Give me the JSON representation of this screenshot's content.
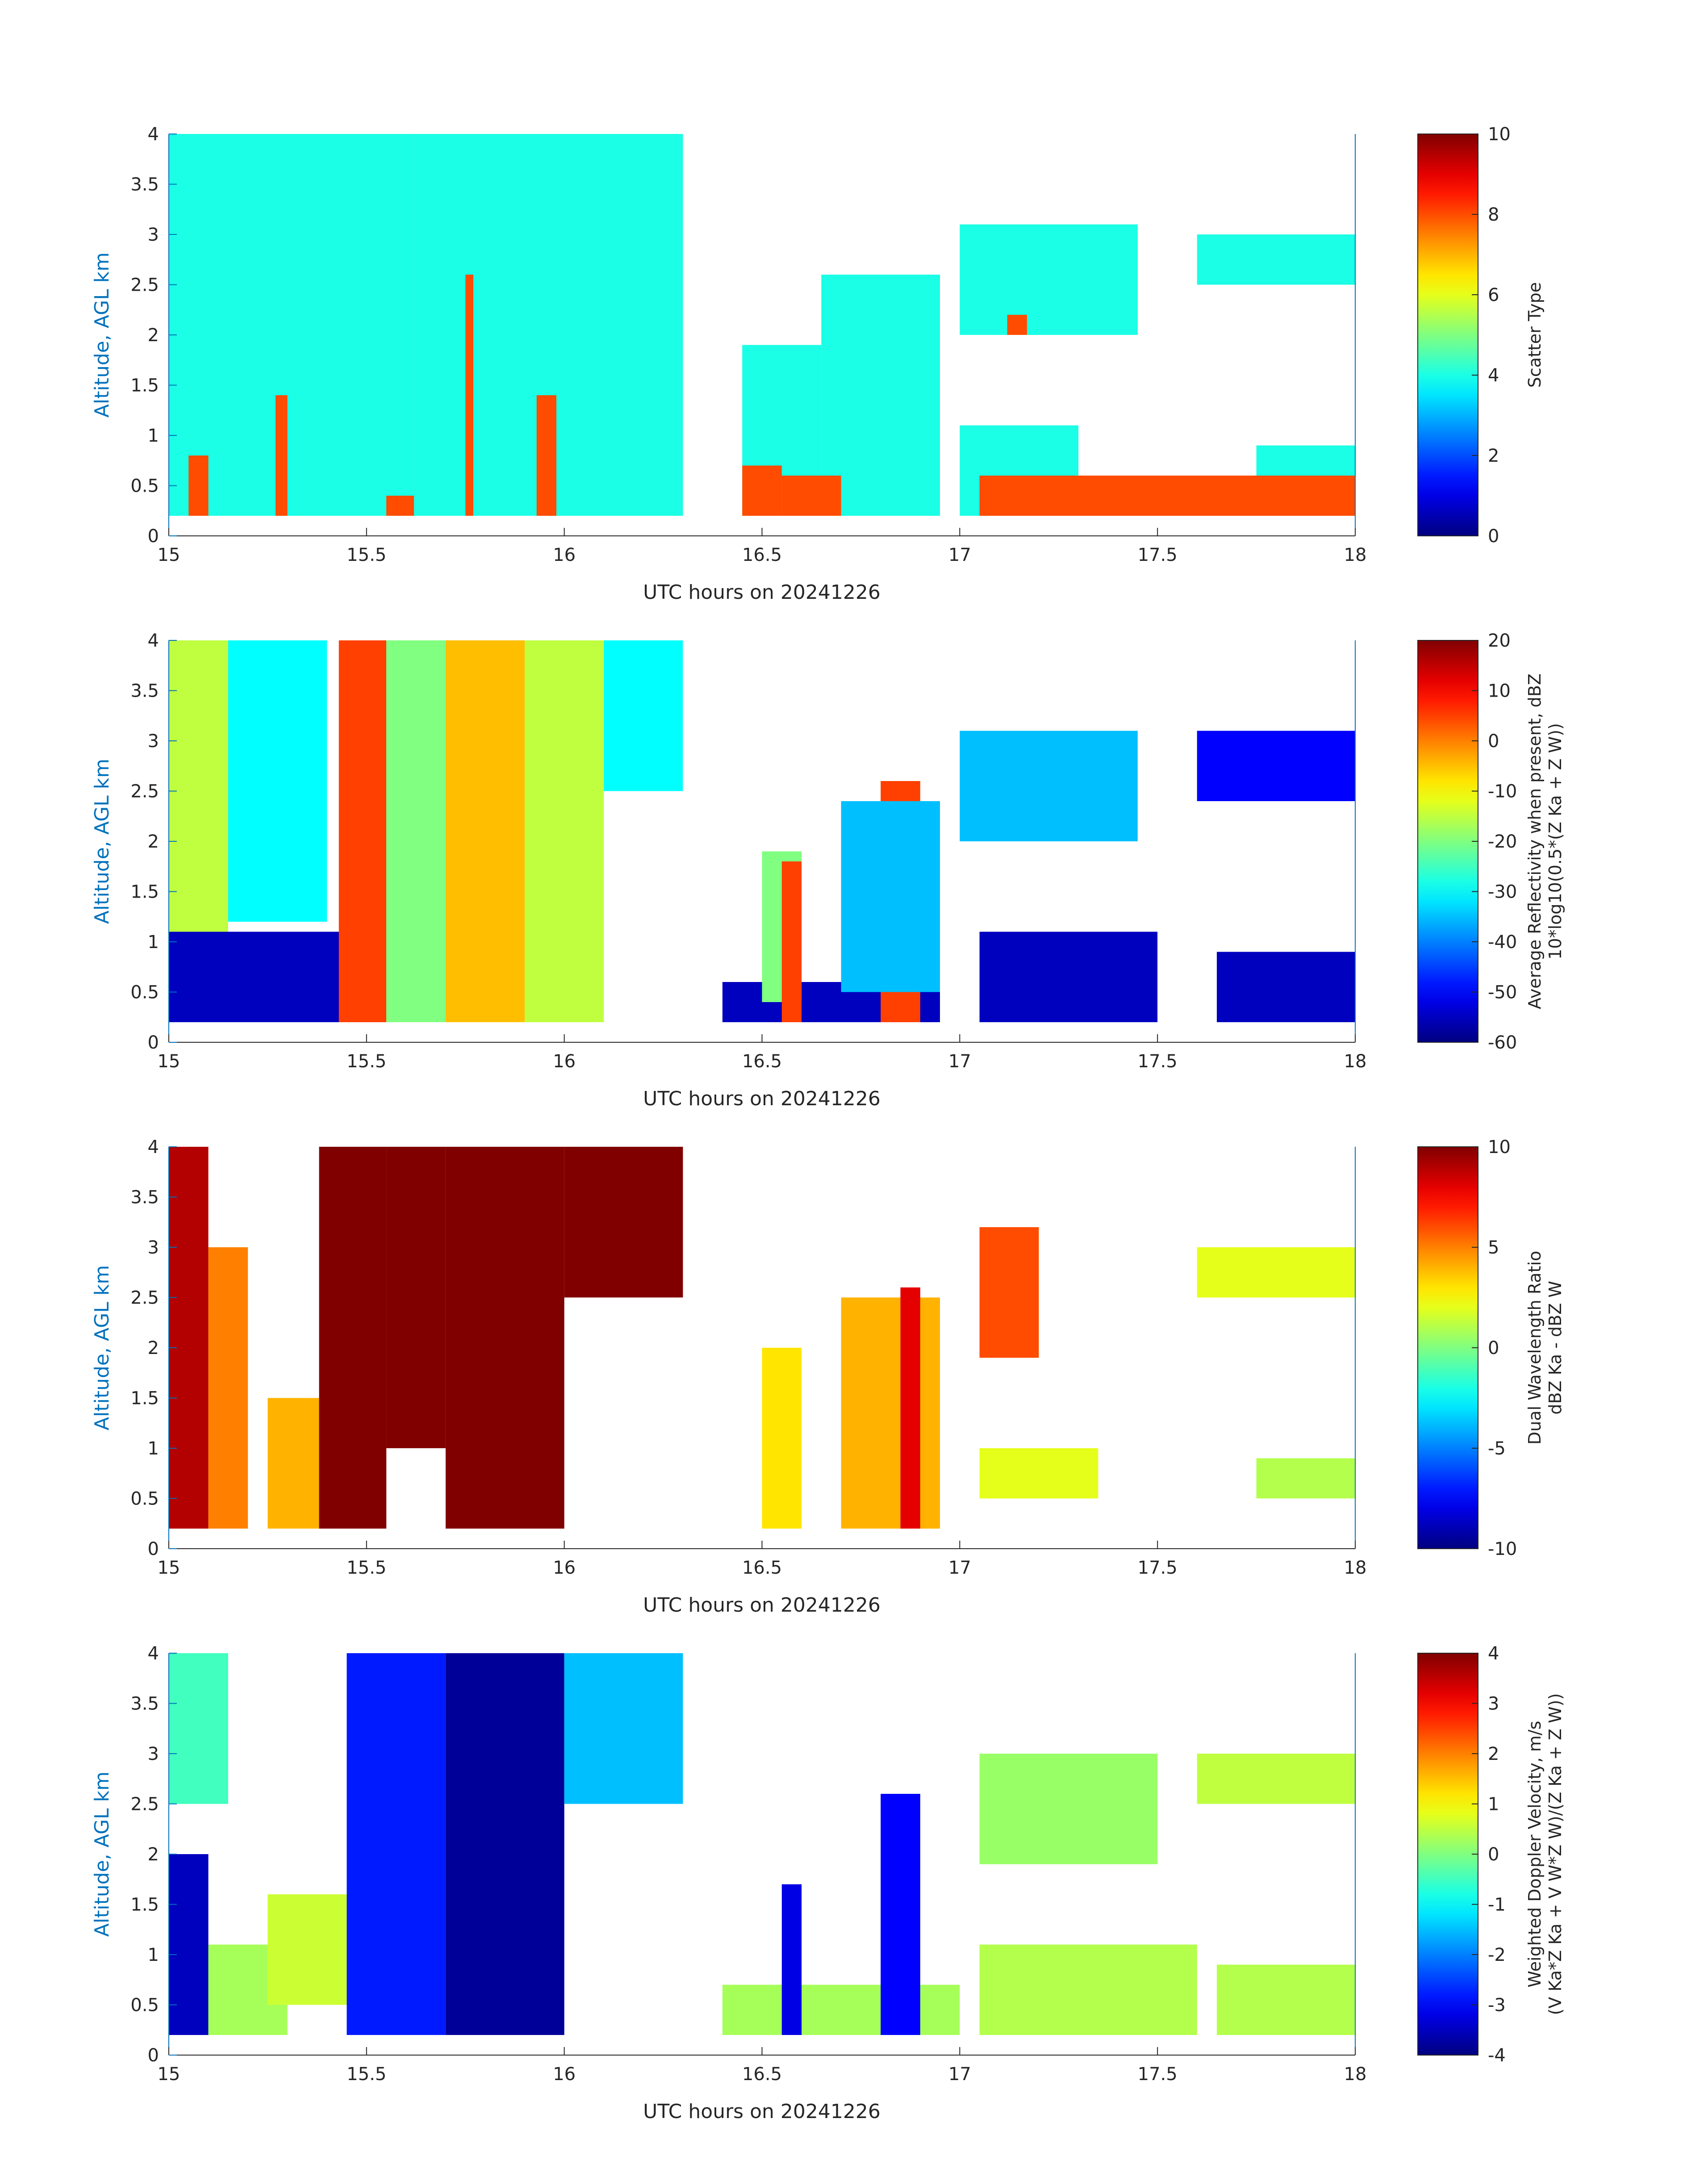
{
  "figure": {
    "x_axis_label": "UTC hours on 20241226",
    "y_axis_label": "Altitude, AGL km"
  },
  "chart_data": [
    {
      "type": "heatmap",
      "panel": "scatter-type",
      "xlabel": "UTC hours on 20241226",
      "ylabel": "Altitude, AGL km",
      "xlim": [
        15,
        18
      ],
      "ylim": [
        0,
        4
      ],
      "xticks": [
        "15",
        "15.5",
        "16",
        "16.5",
        "17",
        "17.5",
        "18"
      ],
      "yticks": [
        "0",
        "0.5",
        "1",
        "1.5",
        "2",
        "2.5",
        "3",
        "3.5",
        "4"
      ],
      "colorbar": {
        "label_lines": [
          "Scatter Type"
        ],
        "range": [
          0,
          10
        ],
        "ticks": [
          "0",
          "2",
          "4",
          "6",
          "8",
          "10"
        ],
        "colormap": "jet"
      },
      "regions": [
        {
          "x": [
            15.0,
            15.62
          ],
          "y": [
            0.2,
            4.0
          ],
          "value": 4
        },
        {
          "x": [
            15.62,
            16.3
          ],
          "y": [
            0.2,
            4.0
          ],
          "value": 4
        },
        {
          "x": [
            16.45,
            16.65
          ],
          "y": [
            0.2,
            1.9
          ],
          "value": 4
        },
        {
          "x": [
            16.65,
            16.95
          ],
          "y": [
            0.2,
            2.6
          ],
          "value": 4
        },
        {
          "x": [
            17.0,
            17.45
          ],
          "y": [
            2.0,
            3.1
          ],
          "value": 4
        },
        {
          "x": [
            17.0,
            17.3
          ],
          "y": [
            0.2,
            1.1
          ],
          "value": 4
        },
        {
          "x": [
            17.6,
            18.0
          ],
          "y": [
            2.5,
            3.0
          ],
          "value": 4
        },
        {
          "x": [
            17.75,
            18.0
          ],
          "y": [
            0.2,
            0.9
          ],
          "value": 4
        },
        {
          "x": [
            15.05,
            15.1
          ],
          "y": [
            0.2,
            0.8
          ],
          "value": 8
        },
        {
          "x": [
            15.27,
            15.3
          ],
          "y": [
            0.2,
            1.4
          ],
          "value": 8
        },
        {
          "x": [
            15.75,
            15.77
          ],
          "y": [
            0.2,
            2.6
          ],
          "value": 8
        },
        {
          "x": [
            15.93,
            15.98
          ],
          "y": [
            0.2,
            1.4
          ],
          "value": 8
        },
        {
          "x": [
            15.55,
            15.62
          ],
          "y": [
            0.2,
            0.4
          ],
          "value": 8
        },
        {
          "x": [
            16.45,
            16.55
          ],
          "y": [
            0.2,
            0.7
          ],
          "value": 8
        },
        {
          "x": [
            16.55,
            16.7
          ],
          "y": [
            0.2,
            0.6
          ],
          "value": 8
        },
        {
          "x": [
            17.05,
            17.8
          ],
          "y": [
            0.2,
            0.6
          ],
          "value": 8
        },
        {
          "x": [
            17.6,
            18.0
          ],
          "y": [
            0.2,
            0.6
          ],
          "value": 8
        },
        {
          "x": [
            17.12,
            17.17
          ],
          "y": [
            2.0,
            2.2
          ],
          "value": 8
        }
      ]
    },
    {
      "type": "heatmap",
      "panel": "reflectivity",
      "xlabel": "UTC hours on 20241226",
      "ylabel": "Altitude, AGL km",
      "xlim": [
        15,
        18
      ],
      "ylim": [
        0,
        4
      ],
      "xticks": [
        "15",
        "15.5",
        "16",
        "16.5",
        "17",
        "17.5",
        "18"
      ],
      "yticks": [
        "0",
        "0.5",
        "1",
        "1.5",
        "2",
        "2.5",
        "3",
        "3.5",
        "4"
      ],
      "colorbar": {
        "label_lines": [
          "Average Reflectivity when present, dBZ",
          "10*log10(0.5*(Z Ka + Z W))"
        ],
        "range": [
          -60,
          20
        ],
        "ticks": [
          "-60",
          "-50",
          "-40",
          "-30",
          "-20",
          "-10",
          "0",
          "10",
          "20"
        ],
        "colormap": "jet"
      },
      "regions": [
        {
          "x": [
            15.0,
            15.15
          ],
          "y": [
            0.2,
            4.0
          ],
          "value": -15
        },
        {
          "x": [
            15.0,
            15.45
          ],
          "y": [
            0.2,
            1.1
          ],
          "value": -55
        },
        {
          "x": [
            15.15,
            15.4
          ],
          "y": [
            1.2,
            4.0
          ],
          "value": -30
        },
        {
          "x": [
            15.43,
            15.55
          ],
          "y": [
            0.2,
            4.0
          ],
          "value": 5
        },
        {
          "x": [
            15.55,
            15.7
          ],
          "y": [
            0.2,
            4.0
          ],
          "value": -20
        },
        {
          "x": [
            15.7,
            15.9
          ],
          "y": [
            0.2,
            4.0
          ],
          "value": -5
        },
        {
          "x": [
            15.9,
            16.1
          ],
          "y": [
            0.2,
            4.0
          ],
          "value": -15
        },
        {
          "x": [
            16.1,
            16.3
          ],
          "y": [
            2.5,
            4.0
          ],
          "value": -30
        },
        {
          "x": [
            16.4,
            16.95
          ],
          "y": [
            0.2,
            0.6
          ],
          "value": -55
        },
        {
          "x": [
            16.5,
            16.6
          ],
          "y": [
            0.4,
            1.9
          ],
          "value": -20
        },
        {
          "x": [
            16.55,
            16.6
          ],
          "y": [
            0.2,
            1.8
          ],
          "value": 5
        },
        {
          "x": [
            16.8,
            16.9
          ],
          "y": [
            0.2,
            2.6
          ],
          "value": 5
        },
        {
          "x": [
            16.7,
            16.95
          ],
          "y": [
            0.5,
            2.4
          ],
          "value": -35
        },
        {
          "x": [
            17.0,
            17.45
          ],
          "y": [
            2.0,
            3.1
          ],
          "value": -35
        },
        {
          "x": [
            17.05,
            17.5
          ],
          "y": [
            0.2,
            1.1
          ],
          "value": -55
        },
        {
          "x": [
            17.6,
            18.0
          ],
          "y": [
            2.4,
            3.1
          ],
          "value": -50
        },
        {
          "x": [
            17.65,
            18.0
          ],
          "y": [
            0.2,
            0.9
          ],
          "value": -55
        }
      ]
    },
    {
      "type": "heatmap",
      "panel": "dual-wavelength-ratio",
      "xlabel": "UTC hours on 20241226",
      "ylabel": "Altitude, AGL km",
      "xlim": [
        15,
        18
      ],
      "ylim": [
        0,
        4
      ],
      "xticks": [
        "15",
        "15.5",
        "16",
        "16.5",
        "17",
        "17.5",
        "18"
      ],
      "yticks": [
        "0",
        "0.5",
        "1",
        "1.5",
        "2",
        "2.5",
        "3",
        "3.5",
        "4"
      ],
      "colorbar": {
        "label_lines": [
          "Dual Wavelength Ratio",
          "dBZ Ka - dBZ W"
        ],
        "range": [
          -10,
          10
        ],
        "ticks": [
          "-10",
          "-5",
          "0",
          "5",
          "10"
        ],
        "colormap": "jet"
      },
      "regions": [
        {
          "x": [
            15.0,
            15.1
          ],
          "y": [
            0.2,
            4.0
          ],
          "value": 9
        },
        {
          "x": [
            15.1,
            15.2
          ],
          "y": [
            0.2,
            3.0
          ],
          "value": 5
        },
        {
          "x": [
            15.25,
            15.45
          ],
          "y": [
            0.2,
            1.5
          ],
          "value": 4
        },
        {
          "x": [
            15.38,
            15.55
          ],
          "y": [
            0.2,
            4.0
          ],
          "value": 10
        },
        {
          "x": [
            15.55,
            15.7
          ],
          "y": [
            1.0,
            4.0
          ],
          "value": 10
        },
        {
          "x": [
            15.7,
            16.0
          ],
          "y": [
            0.2,
            4.0
          ],
          "value": 10
        },
        {
          "x": [
            16.0,
            16.3
          ],
          "y": [
            2.5,
            4.0
          ],
          "value": 10
        },
        {
          "x": [
            16.5,
            16.6
          ],
          "y": [
            0.2,
            2.0
          ],
          "value": 3
        },
        {
          "x": [
            16.7,
            16.95
          ],
          "y": [
            0.2,
            2.5
          ],
          "value": 4
        },
        {
          "x": [
            16.85,
            16.9
          ],
          "y": [
            0.2,
            2.6
          ],
          "value": 8
        },
        {
          "x": [
            17.05,
            17.2
          ],
          "y": [
            1.9,
            3.2
          ],
          "value": 6
        },
        {
          "x": [
            17.05,
            17.35
          ],
          "y": [
            0.5,
            1.0
          ],
          "value": 2
        },
        {
          "x": [
            17.6,
            18.0
          ],
          "y": [
            2.5,
            3.0
          ],
          "value": 2
        },
        {
          "x": [
            17.75,
            18.0
          ],
          "y": [
            0.5,
            0.9
          ],
          "value": 1
        }
      ]
    },
    {
      "type": "heatmap",
      "panel": "doppler-velocity",
      "xlabel": "UTC hours on 20241226",
      "ylabel": "Altitude, AGL km",
      "xlim": [
        15,
        18
      ],
      "ylim": [
        0,
        4
      ],
      "xticks": [
        "15",
        "15.5",
        "16",
        "16.5",
        "17",
        "17.5",
        "18"
      ],
      "yticks": [
        "0",
        "0.5",
        "1",
        "1.5",
        "2",
        "2.5",
        "3",
        "3.5",
        "4"
      ],
      "colorbar": {
        "label_lines": [
          "Weighted Doppler Velocity, m/s",
          "(V Ka*Z Ka + V W*Z W)/(Z Ka + Z W))"
        ],
        "range": [
          -4,
          4
        ],
        "ticks": [
          "-4",
          "-3",
          "-2",
          "-1",
          "0",
          "1",
          "2",
          "3",
          "4"
        ],
        "colormap": "jet"
      },
      "regions": [
        {
          "x": [
            15.0,
            15.15
          ],
          "y": [
            2.5,
            4.0
          ],
          "value": -0.5
        },
        {
          "x": [
            15.0,
            15.1
          ],
          "y": [
            0.2,
            2.0
          ],
          "value": -3.5
        },
        {
          "x": [
            15.1,
            15.3
          ],
          "y": [
            0.2,
            1.1
          ],
          "value": 0.3
        },
        {
          "x": [
            15.25,
            15.45
          ],
          "y": [
            0.5,
            1.6
          ],
          "value": 0.6
        },
        {
          "x": [
            15.45,
            15.7
          ],
          "y": [
            0.2,
            4.0
          ],
          "value": -2.8
        },
        {
          "x": [
            15.7,
            16.0
          ],
          "y": [
            0.2,
            4.0
          ],
          "value": -3.8
        },
        {
          "x": [
            16.0,
            16.3
          ],
          "y": [
            2.5,
            4.0
          ],
          "value": -1.5
        },
        {
          "x": [
            16.4,
            17.0
          ],
          "y": [
            0.2,
            0.7
          ],
          "value": 0.3
        },
        {
          "x": [
            16.55,
            16.6
          ],
          "y": [
            0.2,
            1.7
          ],
          "value": -3.2
        },
        {
          "x": [
            16.8,
            16.9
          ],
          "y": [
            0.2,
            2.6
          ],
          "value": -3.0
        },
        {
          "x": [
            17.05,
            17.5
          ],
          "y": [
            1.9,
            3.0
          ],
          "value": 0.2
        },
        {
          "x": [
            17.05,
            17.6
          ],
          "y": [
            0.2,
            1.1
          ],
          "value": 0.4
        },
        {
          "x": [
            17.6,
            18.0
          ],
          "y": [
            2.5,
            3.0
          ],
          "value": 0.5
        },
        {
          "x": [
            17.65,
            18.0
          ],
          "y": [
            0.2,
            0.9
          ],
          "value": 0.4
        }
      ]
    }
  ]
}
